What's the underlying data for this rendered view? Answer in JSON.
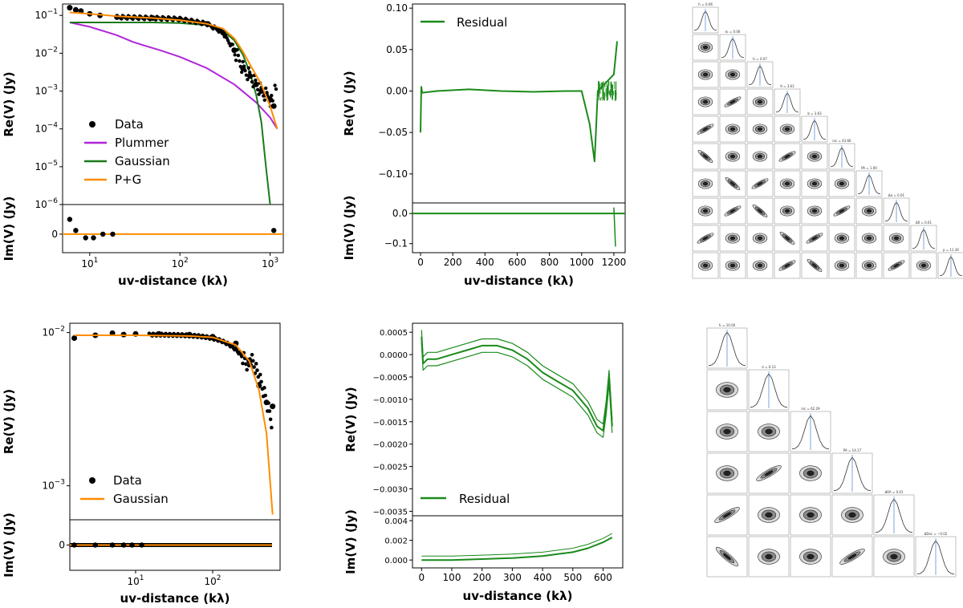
{
  "chart_data": [
    {
      "id": "tl",
      "type": "line",
      "xlabel": "uv-distance (kλ)",
      "ylabel_top": "Re(V) (Jy)",
      "ylabel_bottom": "Im(V) (Jy)",
      "xscale": "log",
      "yscale_top": "log",
      "xlim": [
        5,
        1400
      ],
      "ylim_top": [
        1e-06,
        0.2
      ],
      "ylim_bottom": [
        -0.05,
        0.08
      ],
      "x_ticks": [
        {
          "v": 10,
          "b": "10",
          "e": "1"
        },
        {
          "v": 100,
          "b": "10",
          "e": "2"
        },
        {
          "v": 1000,
          "b": "10",
          "e": "3"
        }
      ],
      "y_ticks_top": [
        {
          "v": 0.1,
          "b": "10",
          "e": "−1"
        },
        {
          "v": 0.01,
          "b": "10",
          "e": "−2"
        },
        {
          "v": 0.001,
          "b": "10",
          "e": "−3"
        },
        {
          "v": 0.0001,
          "b": "10",
          "e": "−4"
        },
        {
          "v": 1e-05,
          "b": "10",
          "e": "−5"
        },
        {
          "v": 1e-06,
          "b": "10",
          "e": "−6"
        }
      ],
      "y_ticks_bottom": [
        {
          "v": 0,
          "t": "0"
        }
      ],
      "legend": [
        "Data",
        "Plummer",
        "Gaussian",
        "P+G"
      ],
      "colors": {
        "data": "#000000",
        "plummer": "#b026d8",
        "gaussian": "#1a7a1a",
        "pg": "#ff8c00"
      },
      "series": [
        {
          "name": "Data",
          "x": [
            6,
            7,
            8,
            10,
            13,
            20,
            50,
            100,
            200,
            300,
            400,
            500,
            600,
            700,
            800,
            900,
            1000,
            1100
          ],
          "y": [
            0.16,
            0.14,
            0.13,
            0.11,
            0.1,
            0.09,
            0.085,
            0.08,
            0.06,
            0.035,
            0.012,
            0.004,
            0.0025,
            0.0015,
            0.001,
            0.0008,
            0.0006,
            0.0004
          ]
        },
        {
          "name": "Plummer",
          "x": [
            6,
            10,
            20,
            30,
            40,
            60,
            100,
            200,
            400,
            700,
            1000,
            1200
          ],
          "y": [
            0.065,
            0.05,
            0.03,
            0.02,
            0.016,
            0.012,
            0.008,
            0.004,
            0.0015,
            0.0005,
            0.0002,
            0.0001
          ]
        },
        {
          "name": "Gaussian",
          "x": [
            6,
            50,
            100,
            200,
            300,
            400,
            500,
            600,
            700,
            800,
            900,
            1000
          ],
          "y": [
            0.065,
            0.065,
            0.063,
            0.055,
            0.04,
            0.022,
            0.009,
            0.003,
            0.0008,
            0.00015,
            1e-05,
            1e-06
          ]
        },
        {
          "name": "P+G",
          "x": [
            6,
            10,
            20,
            50,
            100,
            200,
            300,
            400,
            500,
            600,
            800,
            1000,
            1200
          ],
          "y": [
            0.12,
            0.11,
            0.095,
            0.085,
            0.075,
            0.06,
            0.045,
            0.025,
            0.011,
            0.005,
            0.0015,
            0.0004,
            0.0001
          ]
        }
      ]
    },
    {
      "id": "tm",
      "type": "line",
      "xlabel": "uv-distance (kλ)",
      "ylabel_top": "Re(V) (Jy)",
      "ylabel_bottom": "Im(V) (Jy)",
      "xlim": [
        -50,
        1270
      ],
      "ylim_top": [
        -0.135,
        0.105
      ],
      "ylim_bottom": [
        -0.13,
        0.035
      ],
      "x_ticks": [
        0,
        200,
        400,
        600,
        800,
        1000,
        1200
      ],
      "y_ticks_top": [
        {
          "v": 0.1,
          "t": "0.10"
        },
        {
          "v": 0.05,
          "t": "0.05"
        },
        {
          "v": 0,
          "t": "0.00"
        },
        {
          "v": -0.05,
          "t": "−0.05"
        },
        {
          "v": -0.1,
          "t": "−0.10"
        }
      ],
      "y_ticks_bottom": [
        {
          "v": 0,
          "t": "0.0"
        },
        {
          "v": -0.1,
          "t": "−0.1"
        }
      ],
      "legend": [
        "Residual"
      ],
      "color": "#1a8a1a",
      "series": [
        {
          "name": "Residual",
          "x": [
            0,
            5,
            10,
            100,
            300,
            500,
            700,
            900,
            1000,
            1050,
            1080,
            1100,
            1150,
            1200,
            1220
          ],
          "y": [
            -0.05,
            0.005,
            -0.002,
            0.0,
            0.002,
            0.0,
            -0.001,
            0.0,
            0.0,
            -0.04,
            -0.085,
            0.0,
            0.01,
            0.02,
            0.06
          ]
        }
      ]
    },
    {
      "id": "bl",
      "type": "line",
      "xlabel": "uv-distance (kλ)",
      "ylabel_top": "Re(V) (Jy)",
      "ylabel_bottom": "Im(V) (Jy)",
      "xscale": "log",
      "yscale_top": "log",
      "xlim": [
        1.4,
        750
      ],
      "ylim_top": [
        0.0006,
        0.0115
      ],
      "ylim_bottom": [
        -0.1,
        0.1
      ],
      "x_ticks": [
        {
          "v": 10,
          "b": "10",
          "e": "1"
        },
        {
          "v": 100,
          "b": "10",
          "e": "2"
        }
      ],
      "y_ticks_top": [
        {
          "v": 0.01,
          "b": "10",
          "e": "−2"
        },
        {
          "v": 0.001,
          "b": "10",
          "e": "−3"
        }
      ],
      "y_ticks_bottom": [
        {
          "v": 0,
          "t": "0"
        }
      ],
      "legend": [
        "Data",
        "Gaussian"
      ],
      "colors": {
        "data": "#000000",
        "gaussian": "#ff8c00"
      },
      "series": [
        {
          "name": "Data",
          "x": [
            1.6,
            3,
            5,
            7,
            10,
            20,
            50,
            100,
            200,
            300,
            400,
            500,
            600
          ],
          "y": [
            0.0092,
            0.0096,
            0.0099,
            0.0097,
            0.0098,
            0.0098,
            0.0097,
            0.0094,
            0.0085,
            0.0065,
            0.0045,
            0.0035,
            0.0033
          ]
        },
        {
          "name": "Gaussian",
          "x": [
            1.6,
            10,
            50,
            100,
            200,
            300,
            400,
            500,
            600
          ],
          "y": [
            0.0096,
            0.0096,
            0.0095,
            0.0093,
            0.0083,
            0.0065,
            0.0042,
            0.0022,
            0.00065
          ]
        }
      ]
    },
    {
      "id": "bm",
      "type": "line",
      "xlabel": "uv-distance (kλ)",
      "ylabel_top": "Re(V) (Jy)",
      "ylabel_bottom": "Im(V) (Jy)",
      "xlim": [
        -30,
        665
      ],
      "ylim_top": [
        -0.0036,
        0.0007
      ],
      "ylim_bottom": [
        -0.0008,
        0.0045
      ],
      "x_ticks": [
        0,
        100,
        200,
        300,
        400,
        500,
        600
      ],
      "y_ticks_top": [
        {
          "v": 0.0005,
          "t": "0.0005"
        },
        {
          "v": 0,
          "t": "0.0000"
        },
        {
          "v": -0.0005,
          "t": "−0.0005"
        },
        {
          "v": -0.001,
          "t": "−0.0010"
        },
        {
          "v": -0.0015,
          "t": "−0.0015"
        },
        {
          "v": -0.002,
          "t": "−0.0020"
        },
        {
          "v": -0.0025,
          "t": "−0.0025"
        },
        {
          "v": -0.003,
          "t": "−0.0030"
        },
        {
          "v": -0.0035,
          "t": "−0.0035"
        }
      ],
      "y_ticks_bottom": [
        {
          "v": 0.004,
          "t": "0.004"
        },
        {
          "v": 0.002,
          "t": "0.002"
        },
        {
          "v": 0,
          "t": "0.000"
        }
      ],
      "legend": [
        "Residual"
      ],
      "color": "#1a8a1a",
      "series": [
        {
          "name": "Residual",
          "x": [
            0,
            5,
            20,
            50,
            100,
            150,
            200,
            250,
            300,
            350,
            400,
            450,
            500,
            550,
            580,
            600,
            610,
            620,
            630
          ],
          "y": [
            0.0004,
            -0.0002,
            -0.0001,
            -0.0001,
            0.0,
            0.0001,
            0.0002,
            0.0002,
            0.0001,
            -0.0001,
            -0.0004,
            -0.0006,
            -0.0008,
            -0.0012,
            -0.0016,
            -0.0017,
            -0.0012,
            -0.0005,
            -0.0016
          ]
        }
      ]
    }
  ],
  "corner_plots": {
    "top": {
      "n_params": 10,
      "titles": [
        "f₁ = 0.06",
        "σ₁ = 0.06",
        "f₂ = 0.07",
        "θ = 3.63",
        "b = 3.63",
        "inc = 43.66",
        "PA = 1.00",
        "Δα = 0.01",
        "Δδ = 0.01",
        "p = 11.30"
      ]
    },
    "bottom": {
      "n_params": 6,
      "titles": [
        "f₀ = 10.00",
        "σ = 0.13",
        "inc = 62.29",
        "PA = 14.17",
        "ΔRA = 0.01",
        "ΔDec = −0.02"
      ]
    }
  }
}
